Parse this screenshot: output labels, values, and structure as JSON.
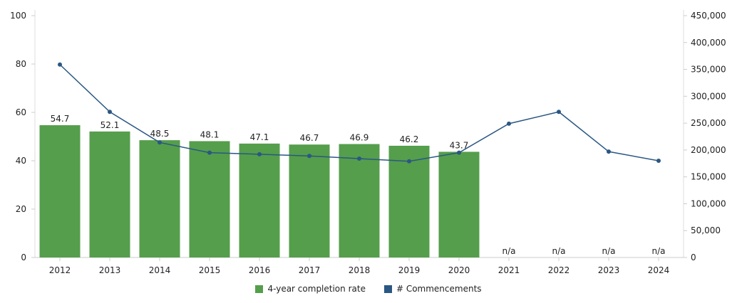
{
  "chart_data": {
    "type": "bar+line",
    "categories": [
      "2012",
      "2013",
      "2014",
      "2015",
      "2016",
      "2017",
      "2018",
      "2019",
      "2020",
      "2021",
      "2022",
      "2023",
      "2024"
    ],
    "series": [
      {
        "name": "4-year completion rate",
        "type": "bar",
        "axis": "left",
        "color": "#559e4c",
        "values": [
          54.7,
          52.1,
          48.5,
          48.1,
          47.1,
          46.7,
          46.9,
          46.2,
          43.7,
          null,
          null,
          null,
          null
        ],
        "labels": [
          "54.7",
          "52.1",
          "48.5",
          "48.1",
          "47.1",
          "46.7",
          "46.9",
          "46.2",
          "43.7",
          "n/a",
          "n/a",
          "n/a",
          "n/a"
        ]
      },
      {
        "name": "# Commencements",
        "type": "line",
        "axis": "right",
        "color": "#2a5783",
        "values": [
          359000,
          271000,
          214000,
          195000,
          192000,
          189000,
          184000,
          179000,
          195000,
          249000,
          271000,
          197000,
          180000
        ]
      }
    ],
    "left_axis": {
      "min": 0,
      "max": 100,
      "ticks": [
        "0",
        "20",
        "40",
        "60",
        "80",
        "100"
      ]
    },
    "right_axis": {
      "min": 0,
      "max": 450000,
      "ticks": [
        "0",
        "50,000",
        "100,000",
        "150,000",
        "200,000",
        "250,000",
        "300,000",
        "350,000",
        "400,000",
        "450,000"
      ]
    },
    "grid": false,
    "legend": "bottom"
  }
}
